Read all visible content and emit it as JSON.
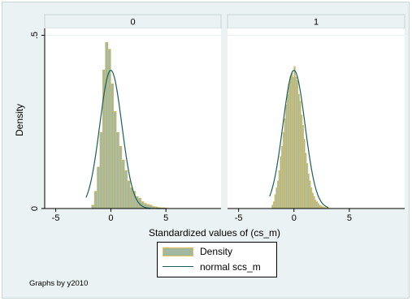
{
  "chart_data": {
    "type": "histogram",
    "ylabel": "Density",
    "xlabel": "Standardized values of (cs_m)",
    "note": "Graphs by y2010",
    "xlim": [
      -6,
      10
    ],
    "ylim": [
      0,
      0.52
    ],
    "xticks": [
      -5,
      0,
      5
    ],
    "yticks": [
      0,
      0.5
    ],
    "ytick_labels": [
      "0",
      ".5"
    ],
    "colors": {
      "bar_fill": "#a3b8a1",
      "bar_edge": "#e2c05a",
      "line": "#1a5f5a",
      "panel_bg": "#ffffff",
      "outer_bg": "#eaf2f3",
      "strip_bg": "#eaf2f3"
    },
    "legend": {
      "bar_label": "Density",
      "line_label": "normal scs_m",
      "position": "bottom"
    },
    "panels": [
      {
        "title": "0",
        "bar_width": 0.25,
        "bars": [
          {
            "x": -1.75,
            "h": 0.01
          },
          {
            "x": -1.5,
            "h": 0.05
          },
          {
            "x": -1.25,
            "h": 0.12
          },
          {
            "x": -1.0,
            "h": 0.22
          },
          {
            "x": -0.75,
            "h": 0.4
          },
          {
            "x": -0.5,
            "h": 0.48
          },
          {
            "x": -0.25,
            "h": 0.46
          },
          {
            "x": 0.0,
            "h": 0.36
          },
          {
            "x": 0.25,
            "h": 0.28
          },
          {
            "x": 0.5,
            "h": 0.22
          },
          {
            "x": 0.75,
            "h": 0.18
          },
          {
            "x": 1.0,
            "h": 0.14
          },
          {
            "x": 1.25,
            "h": 0.11
          },
          {
            "x": 1.5,
            "h": 0.08
          },
          {
            "x": 1.75,
            "h": 0.06
          },
          {
            "x": 2.0,
            "h": 0.05
          },
          {
            "x": 2.25,
            "h": 0.035
          },
          {
            "x": 2.5,
            "h": 0.03
          },
          {
            "x": 2.75,
            "h": 0.02
          },
          {
            "x": 3.0,
            "h": 0.015
          },
          {
            "x": 3.25,
            "h": 0.012
          },
          {
            "x": 3.5,
            "h": 0.01
          },
          {
            "x": 3.75,
            "h": 0.006
          },
          {
            "x": 4.0,
            "h": 0.005
          },
          {
            "x": 4.25,
            "h": 0.003
          },
          {
            "x": 4.5,
            "h": 0.002
          },
          {
            "x": 4.75,
            "h": 0.002
          },
          {
            "x": 5.0,
            "h": 0.001
          }
        ],
        "normal": {
          "mean": 0.0,
          "sd": 1.0,
          "xmin": -2.25,
          "xmax": 4.9
        }
      },
      {
        "title": "1",
        "bar_width": 0.125,
        "bars": [
          {
            "x": -2.0,
            "h": 0.01
          },
          {
            "x": -1.875,
            "h": 0.02
          },
          {
            "x": -1.75,
            "h": 0.04
          },
          {
            "x": -1.625,
            "h": 0.06
          },
          {
            "x": -1.5,
            "h": 0.08
          },
          {
            "x": -1.375,
            "h": 0.11
          },
          {
            "x": -1.25,
            "h": 0.15
          },
          {
            "x": -1.125,
            "h": 0.18
          },
          {
            "x": -1.0,
            "h": 0.22
          },
          {
            "x": -0.875,
            "h": 0.26
          },
          {
            "x": -0.75,
            "h": 0.3
          },
          {
            "x": -0.625,
            "h": 0.33
          },
          {
            "x": -0.5,
            "h": 0.36
          },
          {
            "x": -0.375,
            "h": 0.38
          },
          {
            "x": -0.25,
            "h": 0.39
          },
          {
            "x": -0.125,
            "h": 0.38
          },
          {
            "x": 0.0,
            "h": 0.41
          },
          {
            "x": 0.125,
            "h": 0.38
          },
          {
            "x": 0.25,
            "h": 0.37
          },
          {
            "x": 0.375,
            "h": 0.33
          },
          {
            "x": 0.5,
            "h": 0.31
          },
          {
            "x": 0.625,
            "h": 0.27
          },
          {
            "x": 0.75,
            "h": 0.24
          },
          {
            "x": 0.875,
            "h": 0.2
          },
          {
            "x": 1.0,
            "h": 0.16
          },
          {
            "x": 1.125,
            "h": 0.13
          },
          {
            "x": 1.25,
            "h": 0.1
          },
          {
            "x": 1.375,
            "h": 0.08
          },
          {
            "x": 1.5,
            "h": 0.06
          },
          {
            "x": 1.625,
            "h": 0.045
          },
          {
            "x": 1.75,
            "h": 0.035
          },
          {
            "x": 1.875,
            "h": 0.025
          },
          {
            "x": 2.0,
            "h": 0.02
          },
          {
            "x": 2.125,
            "h": 0.015
          },
          {
            "x": 2.25,
            "h": 0.01
          },
          {
            "x": 2.375,
            "h": 0.008
          },
          {
            "x": 2.5,
            "h": 0.006
          },
          {
            "x": 2.625,
            "h": 0.004
          },
          {
            "x": 2.75,
            "h": 0.003
          },
          {
            "x": 2.875,
            "h": 0.002
          },
          {
            "x": 3.0,
            "h": 0.002
          },
          {
            "x": 3.125,
            "h": 0.001
          }
        ],
        "normal": {
          "mean": 0.0,
          "sd": 1.0,
          "xmin": -2.2,
          "xmax": 3.1
        }
      }
    ]
  }
}
